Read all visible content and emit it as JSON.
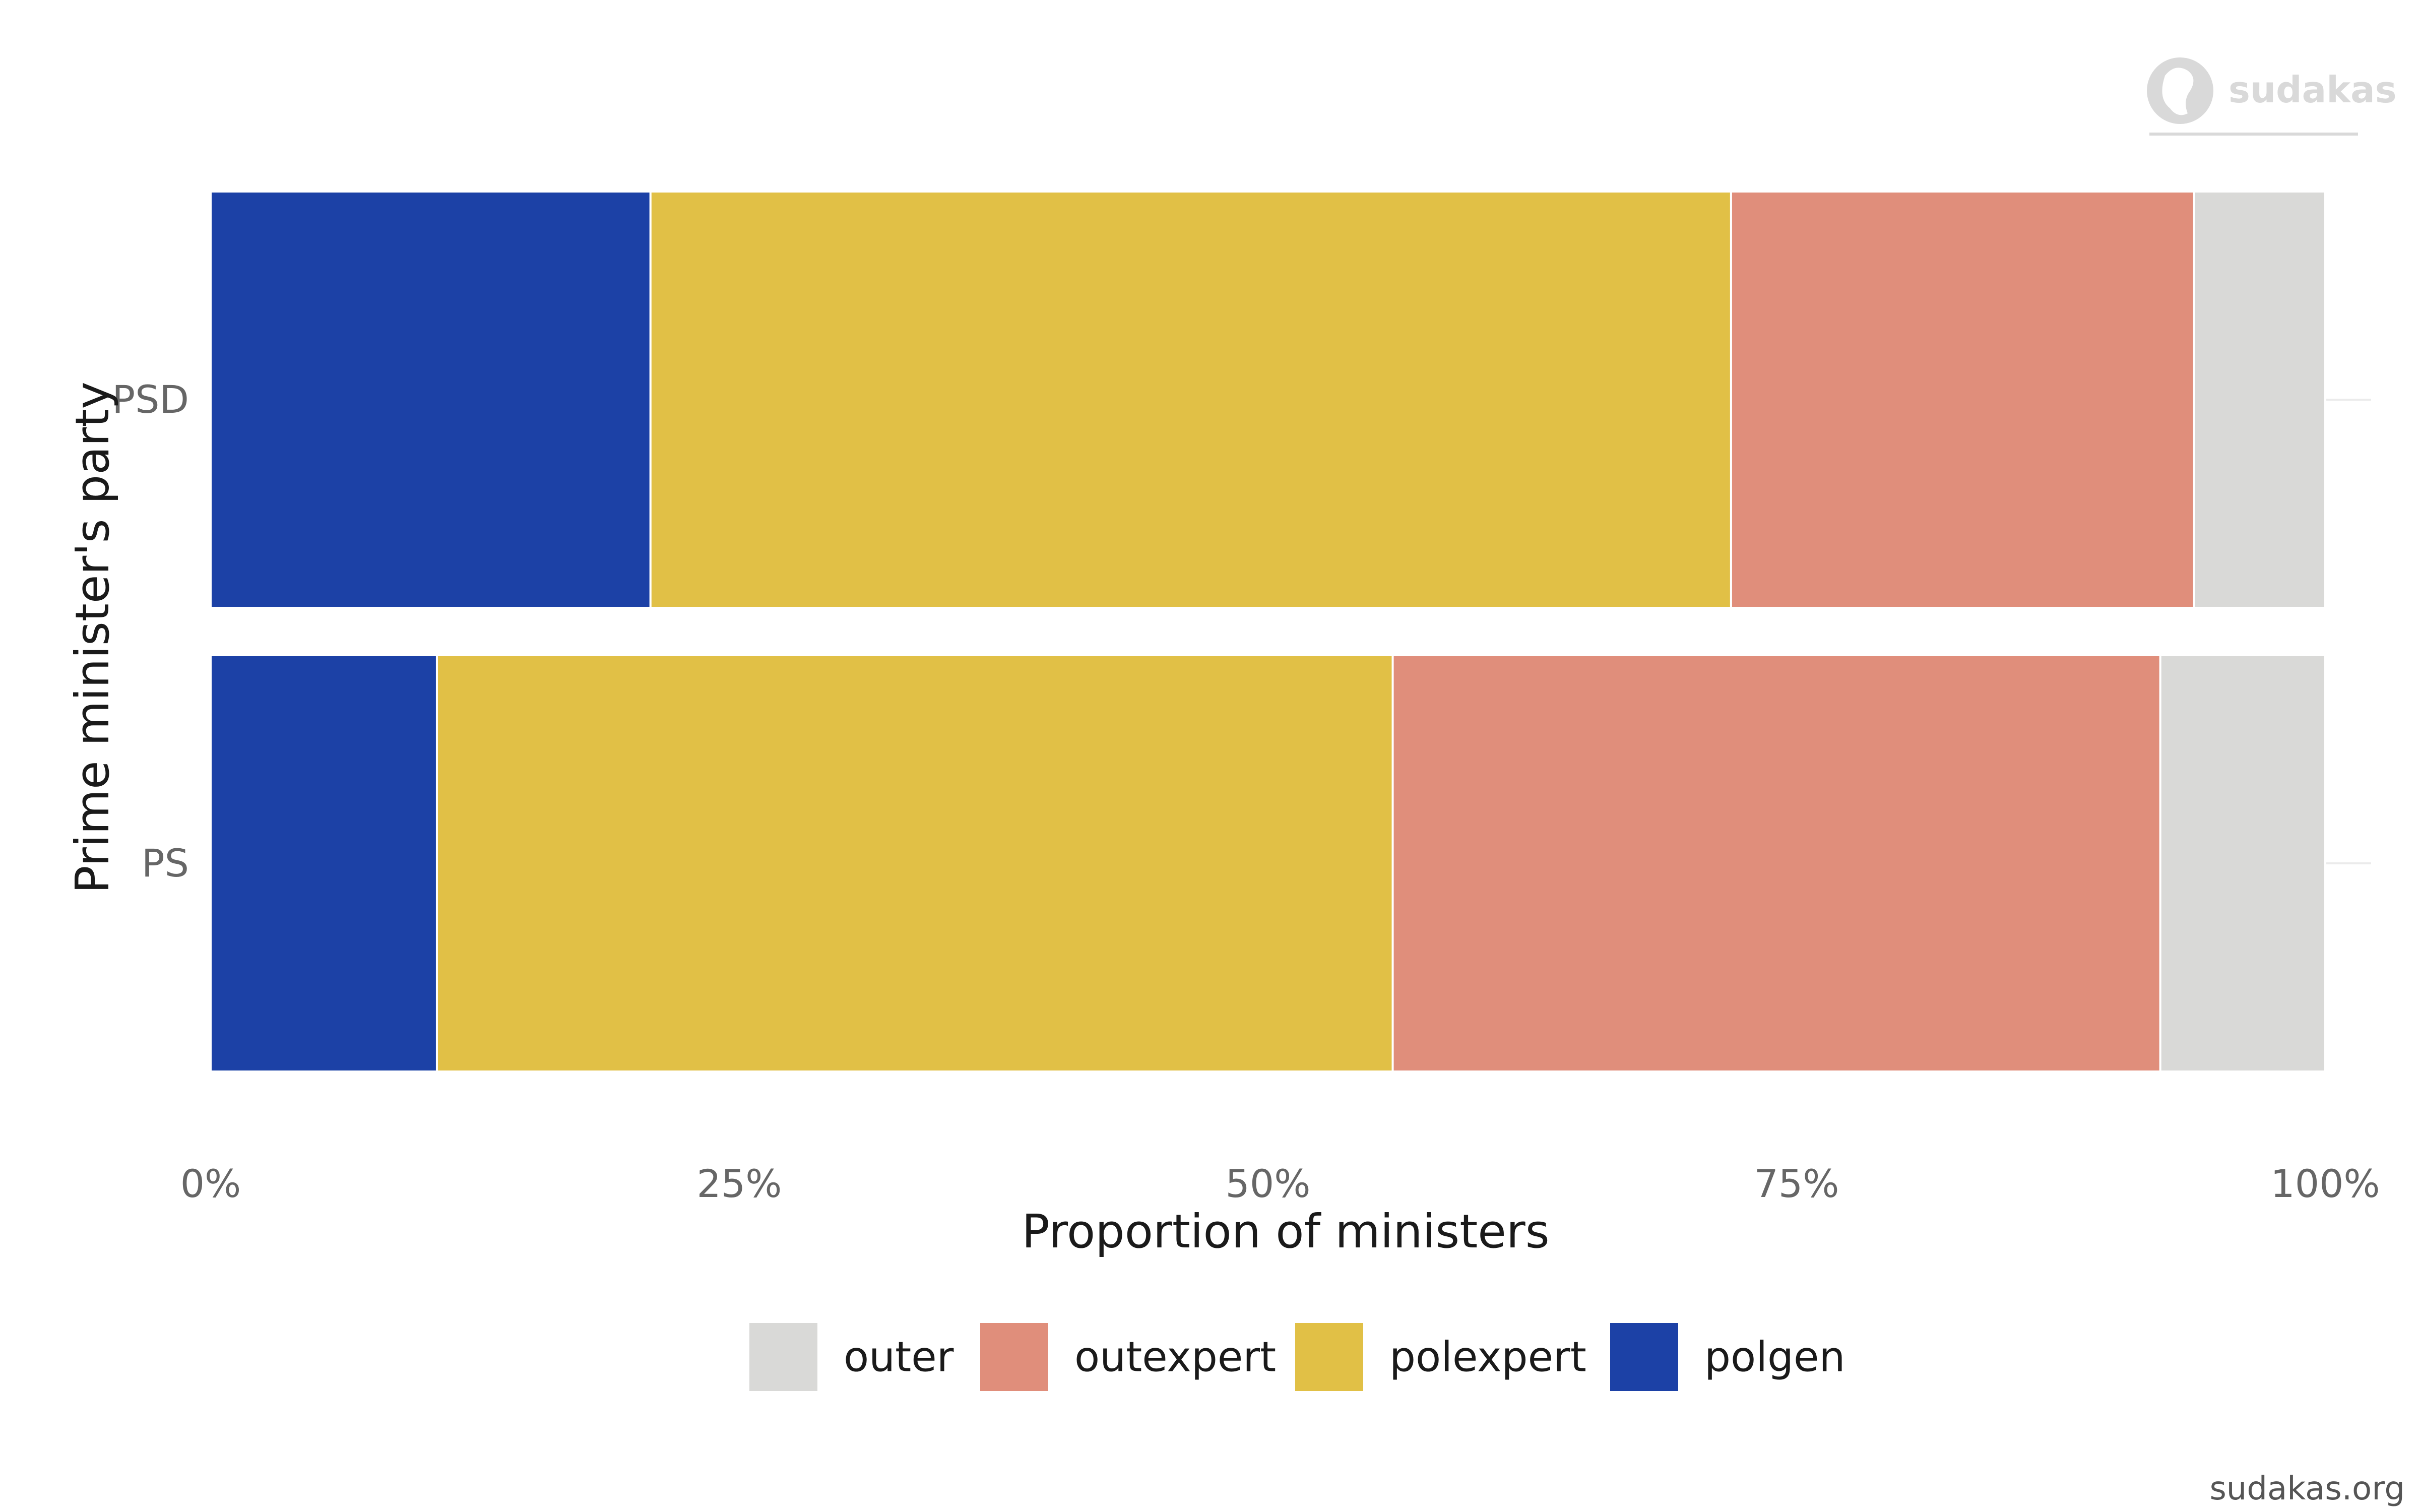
{
  "logo": {
    "text": "sudakas"
  },
  "caption": "sudakas.org",
  "chart_data": {
    "type": "bar",
    "orientation": "horizontal",
    "stacked": true,
    "normalized": true,
    "categories": [
      "PSD",
      "PS"
    ],
    "series": [
      {
        "name": "polgen",
        "color": "#1c41a6",
        "values": [
          0.208,
          0.107
        ]
      },
      {
        "name": "polexpert",
        "color": "#e1c046",
        "values": [
          0.511,
          0.452
        ]
      },
      {
        "name": "outexpert",
        "color": "#e08e7b",
        "values": [
          0.219,
          0.363
        ]
      },
      {
        "name": "outer",
        "color": "#d9d9d7",
        "values": [
          0.062,
          0.078
        ]
      }
    ],
    "xlabel": "Proportion of ministers",
    "ylabel": "Prime minister's party",
    "xlim": [
      0,
      1
    ],
    "xticks": [
      "0%",
      "25%",
      "50%",
      "75%",
      "100%"
    ],
    "legend": {
      "position": "bottom",
      "order": [
        "outer",
        "outexpert",
        "polexpert",
        "polgen"
      ]
    },
    "grid": true
  }
}
